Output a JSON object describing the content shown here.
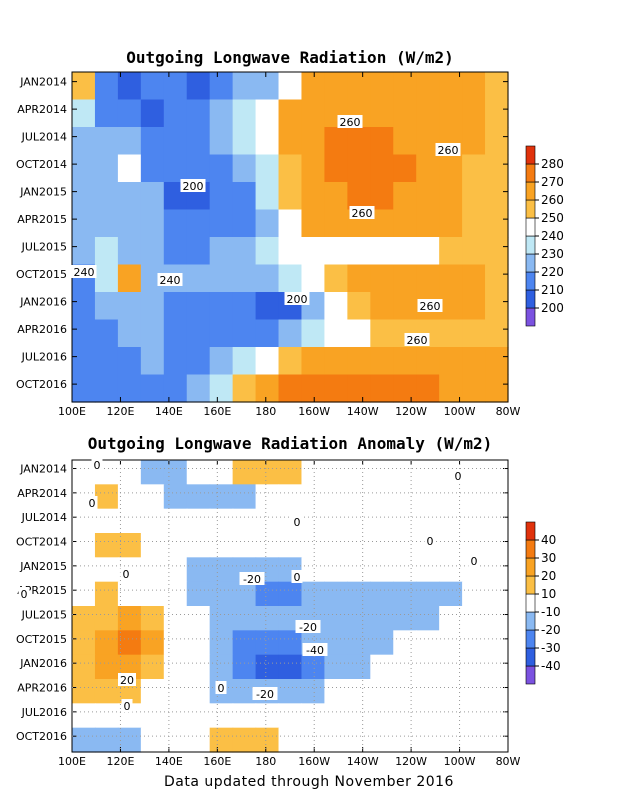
{
  "footer": "Data updated through November 2016",
  "chart_data": [
    {
      "type": "heatmap",
      "title": "Outgoing Longwave Radiation (W/m2)",
      "x_ticks": [
        "100E",
        "120E",
        "140E",
        "160E",
        "180",
        "160W",
        "140W",
        "120W",
        "100W",
        "80W"
      ],
      "y_ticks": [
        "JAN2014",
        "APR2014",
        "JUL2014",
        "OCT2014",
        "JAN2015",
        "APR2015",
        "JUL2015",
        "OCT2015",
        "JAN2016",
        "APR2016",
        "JUL2016",
        "OCT2016"
      ],
      "colorbar": {
        "labels": [
          "200",
          "210",
          "220",
          "230",
          "240",
          "250",
          "260",
          "270",
          "280"
        ],
        "colors": [
          "#7b52e0",
          "#2f5fe0",
          "#4d85f0",
          "#8ab9f2",
          "#bfe8f5",
          "#ffffff",
          "#fbbf45",
          "#f9a323",
          "#f47b11",
          "#e0320c"
        ]
      },
      "contour_labels": [
        "260",
        "260",
        "200",
        "260",
        "240",
        "240",
        "200",
        "260",
        "260"
      ],
      "grid": [
        [
          6,
          2,
          1,
          2,
          2,
          1,
          2,
          3,
          3,
          5,
          7,
          7,
          7,
          7,
          7,
          7,
          7,
          7,
          6
        ],
        [
          4,
          2,
          2,
          1,
          2,
          2,
          3,
          4,
          5,
          7,
          7,
          7,
          7,
          7,
          7,
          7,
          7,
          7,
          6
        ],
        [
          3,
          3,
          3,
          2,
          2,
          2,
          3,
          4,
          5,
          7,
          7,
          8,
          8,
          8,
          7,
          7,
          7,
          7,
          6
        ],
        [
          3,
          3,
          5,
          2,
          2,
          2,
          2,
          3,
          4,
          6,
          7,
          8,
          8,
          8,
          8,
          7,
          7,
          6,
          6
        ],
        [
          3,
          3,
          3,
          3,
          1,
          1,
          2,
          2,
          4,
          6,
          7,
          7,
          8,
          8,
          7,
          7,
          7,
          6,
          6
        ],
        [
          3,
          3,
          3,
          3,
          2,
          2,
          2,
          2,
          3,
          5,
          7,
          7,
          7,
          7,
          7,
          7,
          7,
          6,
          6
        ],
        [
          3,
          4,
          3,
          3,
          2,
          2,
          3,
          3,
          4,
          5,
          5,
          5,
          5,
          5,
          5,
          5,
          6,
          6,
          6
        ],
        [
          2,
          4,
          7,
          3,
          3,
          3,
          3,
          3,
          3,
          4,
          5,
          6,
          7,
          7,
          7,
          7,
          7,
          7,
          6
        ],
        [
          2,
          3,
          3,
          3,
          2,
          2,
          2,
          2,
          1,
          1,
          3,
          5,
          6,
          7,
          7,
          7,
          7,
          7,
          6
        ],
        [
          2,
          2,
          3,
          3,
          2,
          2,
          2,
          2,
          2,
          3,
          4,
          5,
          5,
          6,
          6,
          6,
          6,
          6,
          6
        ],
        [
          2,
          2,
          2,
          3,
          2,
          2,
          3,
          4,
          5,
          6,
          7,
          7,
          7,
          7,
          7,
          7,
          7,
          7,
          7
        ],
        [
          2,
          2,
          2,
          2,
          2,
          3,
          4,
          6,
          7,
          8,
          8,
          8,
          8,
          8,
          8,
          8,
          7,
          7,
          7
        ]
      ]
    },
    {
      "type": "heatmap",
      "title": "Outgoing Longwave Radiation Anomaly (W/m2)",
      "x_ticks": [
        "100E",
        "120E",
        "140E",
        "160E",
        "180",
        "160W",
        "140W",
        "120W",
        "100W",
        "80W"
      ],
      "y_ticks": [
        "JAN2014",
        "APR2014",
        "JUL2014",
        "OCT2014",
        "JAN2015",
        "APR2015",
        "JUL2015",
        "OCT2015",
        "JAN2016",
        "APR2016",
        "JUL2016",
        "OCT2016"
      ],
      "colorbar": {
        "labels": [
          "-40",
          "-30",
          "-20",
          "-10",
          "10",
          "20",
          "30",
          "40"
        ],
        "colors": [
          "#7b52e0",
          "#2f5fe0",
          "#4d85f0",
          "#8ab9f2",
          "#ffffff",
          "#fbbf45",
          "#f9a323",
          "#f47b11",
          "#e0320c"
        ]
      },
      "contour_labels": [
        "0",
        "0",
        "0",
        "0",
        "0",
        "0",
        "-20",
        "0",
        "0",
        "0",
        "-20",
        "-40",
        "-20",
        "20",
        "0",
        "0"
      ],
      "grid": [
        [
          4,
          4,
          4,
          3,
          3,
          4,
          4,
          5,
          5,
          5,
          4,
          4,
          4,
          4,
          4,
          4,
          4,
          4,
          4
        ],
        [
          4,
          5,
          4,
          4,
          3,
          3,
          3,
          3,
          4,
          4,
          4,
          4,
          4,
          4,
          4,
          4,
          4,
          4,
          4
        ],
        [
          4,
          4,
          4,
          4,
          4,
          4,
          4,
          4,
          4,
          4,
          4,
          4,
          4,
          4,
          4,
          4,
          4,
          4,
          4
        ],
        [
          4,
          5,
          5,
          4,
          4,
          4,
          4,
          4,
          4,
          4,
          4,
          4,
          4,
          4,
          4,
          4,
          4,
          4,
          4
        ],
        [
          4,
          4,
          4,
          4,
          4,
          3,
          3,
          3,
          3,
          3,
          4,
          4,
          4,
          4,
          4,
          4,
          4,
          4,
          4
        ],
        [
          4,
          5,
          4,
          4,
          4,
          3,
          3,
          3,
          2,
          2,
          3,
          3,
          3,
          3,
          3,
          3,
          3,
          4,
          4
        ],
        [
          5,
          5,
          6,
          5,
          4,
          4,
          3,
          3,
          3,
          3,
          3,
          3,
          3,
          3,
          3,
          3,
          4,
          4,
          4
        ],
        [
          5,
          6,
          7,
          6,
          4,
          4,
          3,
          2,
          2,
          2,
          3,
          3,
          3,
          3,
          4,
          4,
          4,
          4,
          4
        ],
        [
          5,
          6,
          6,
          5,
          4,
          4,
          3,
          2,
          1,
          1,
          2,
          3,
          3,
          4,
          4,
          4,
          4,
          4,
          4
        ],
        [
          5,
          5,
          5,
          4,
          4,
          4,
          3,
          3,
          3,
          3,
          3,
          4,
          4,
          4,
          4,
          4,
          4,
          4,
          4
        ],
        [
          4,
          4,
          4,
          4,
          4,
          4,
          4,
          4,
          4,
          4,
          4,
          4,
          4,
          4,
          4,
          4,
          4,
          4,
          4
        ],
        [
          3,
          3,
          3,
          4,
          4,
          4,
          5,
          5,
          5,
          4,
          4,
          4,
          4,
          4,
          4,
          4,
          4,
          4,
          4
        ]
      ]
    }
  ]
}
